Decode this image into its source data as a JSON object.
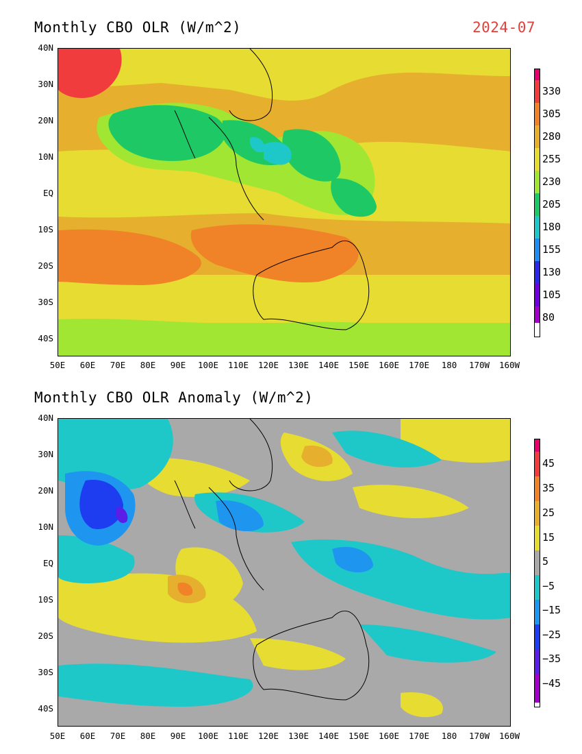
{
  "panel1": {
    "title": "Monthly CBO OLR (W/m^2)",
    "date": "2024-07",
    "date_color": "#e0403a",
    "colorbar": {
      "colors": [
        "#a000c8",
        "#6e00dc",
        "#2828e6",
        "#1e8cf0",
        "#1ec8c8",
        "#1ec864",
        "#a0e632",
        "#e6dc32",
        "#e6af2d",
        "#f08228",
        "#f03c3c",
        "#e6006e"
      ],
      "labels": [
        "330",
        "305",
        "280",
        "255",
        "230",
        "205",
        "180",
        "155",
        "130",
        "105",
        "80"
      ]
    }
  },
  "panel2": {
    "title": "Monthly CBO OLR Anomaly (W/m^2)",
    "colorbar": {
      "colors": [
        "#a000c8",
        "#5a1ee6",
        "#1e3cf0",
        "#1e96f0",
        "#1ec8c8",
        "#a9a9a9",
        "#e6dc32",
        "#e6af2d",
        "#f08228",
        "#f03c3c",
        "#e6006e"
      ],
      "labels": [
        "45",
        "35",
        "25",
        "15",
        "5",
        "−5",
        "−15",
        "−25",
        "−35",
        "−45"
      ]
    }
  },
  "axes": {
    "lat_labels": [
      "40N",
      "30N",
      "20N",
      "10N",
      "EQ",
      "10S",
      "20S",
      "30S",
      "40S"
    ],
    "lon_labels": [
      "50E",
      "60E",
      "70E",
      "80E",
      "90E",
      "100E",
      "110E",
      "120E",
      "130E",
      "140E",
      "150E",
      "160E",
      "170E",
      "180",
      "170W",
      "160W"
    ]
  }
}
